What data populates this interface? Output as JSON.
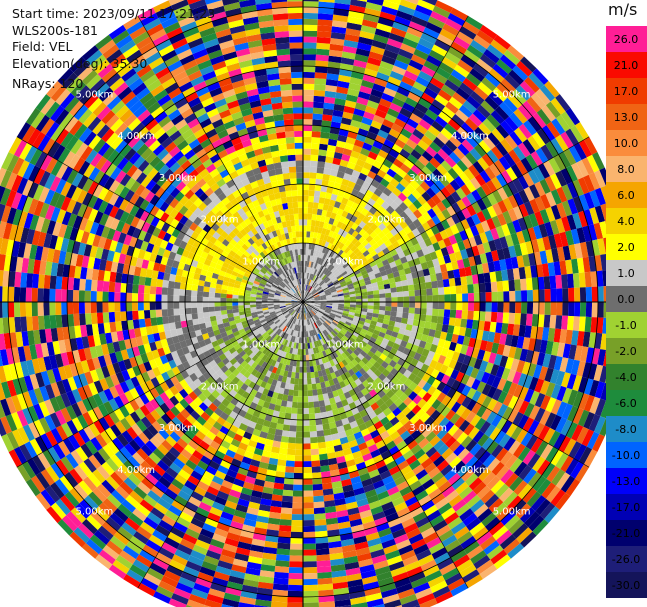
{
  "header": {
    "start_time": "Start time: 2023/09/11 17:21:23",
    "instrument": "WLS200s-181",
    "field": "Field: VEL",
    "elevation": "Elevation(deg): 35.30",
    "nrays": "NRays: 120"
  },
  "colorbar": {
    "unit": "m/s",
    "bins": [
      {
        "label": "26.0",
        "color": "#ff1e96"
      },
      {
        "label": "21.0",
        "color": "#fa0a00"
      },
      {
        "label": "17.0",
        "color": "#f03c00"
      },
      {
        "label": "13.0",
        "color": "#f06414"
      },
      {
        "label": "10.0",
        "color": "#fa8c3c"
      },
      {
        "label": "8.0",
        "color": "#fab46e"
      },
      {
        "label": "6.0",
        "color": "#f5a500"
      },
      {
        "label": "4.0",
        "color": "#f5d200"
      },
      {
        "label": "2.0",
        "color": "#ffff00"
      },
      {
        "label": "1.0",
        "color": "#c8c8c8"
      },
      {
        "label": "0.0",
        "color": "#6e6e6e"
      },
      {
        "label": "-1.0",
        "color": "#a0d232"
      },
      {
        "label": "-2.0",
        "color": "#78a028"
      },
      {
        "label": "-4.0",
        "color": "#32822d"
      },
      {
        "label": "-6.0",
        "color": "#1e8c3c"
      },
      {
        "label": "-8.0",
        "color": "#1e8cc8"
      },
      {
        "label": "-10.0",
        "color": "#0064ff"
      },
      {
        "label": "-13.0",
        "color": "#0000fa"
      },
      {
        "label": "-17.0",
        "color": "#0000b4"
      },
      {
        "label": "-21.0",
        "color": "#00006e"
      },
      {
        "label": "-26.0",
        "color": "#1e1e78"
      },
      {
        "label": "-30.0",
        "color": "#14145a"
      }
    ]
  },
  "chart_data": {
    "type": "heatmap",
    "title": "",
    "projection": "polar (PPI scan)",
    "field": "VEL",
    "units": "m/s",
    "nrays": 120,
    "range_rings_km": [
      1,
      2,
      3,
      4,
      5
    ],
    "ring_labels": [
      "1.00km",
      "2.00km",
      "3.00km",
      "4.00km",
      "5.00km"
    ],
    "max_range_km": 5.6,
    "color_levels": [
      26.0,
      21.0,
      17.0,
      13.0,
      10.0,
      8.0,
      6.0,
      4.0,
      2.0,
      1.0,
      0.0,
      -1.0,
      -2.0,
      -4.0,
      -6.0,
      -8.0,
      -10.0,
      -13.0,
      -17.0,
      -21.0,
      -26.0,
      -30.0
    ],
    "pattern_description": "Near-field (<1.5 km) dominated by gray (0 to 1 m/s) with a yellow (2 to 4 m/s) sector to the north-west and a green (-1 to -2 m/s) swirl to the east/south; beyond ~2.5 km returns are noise spanning the full color range."
  }
}
